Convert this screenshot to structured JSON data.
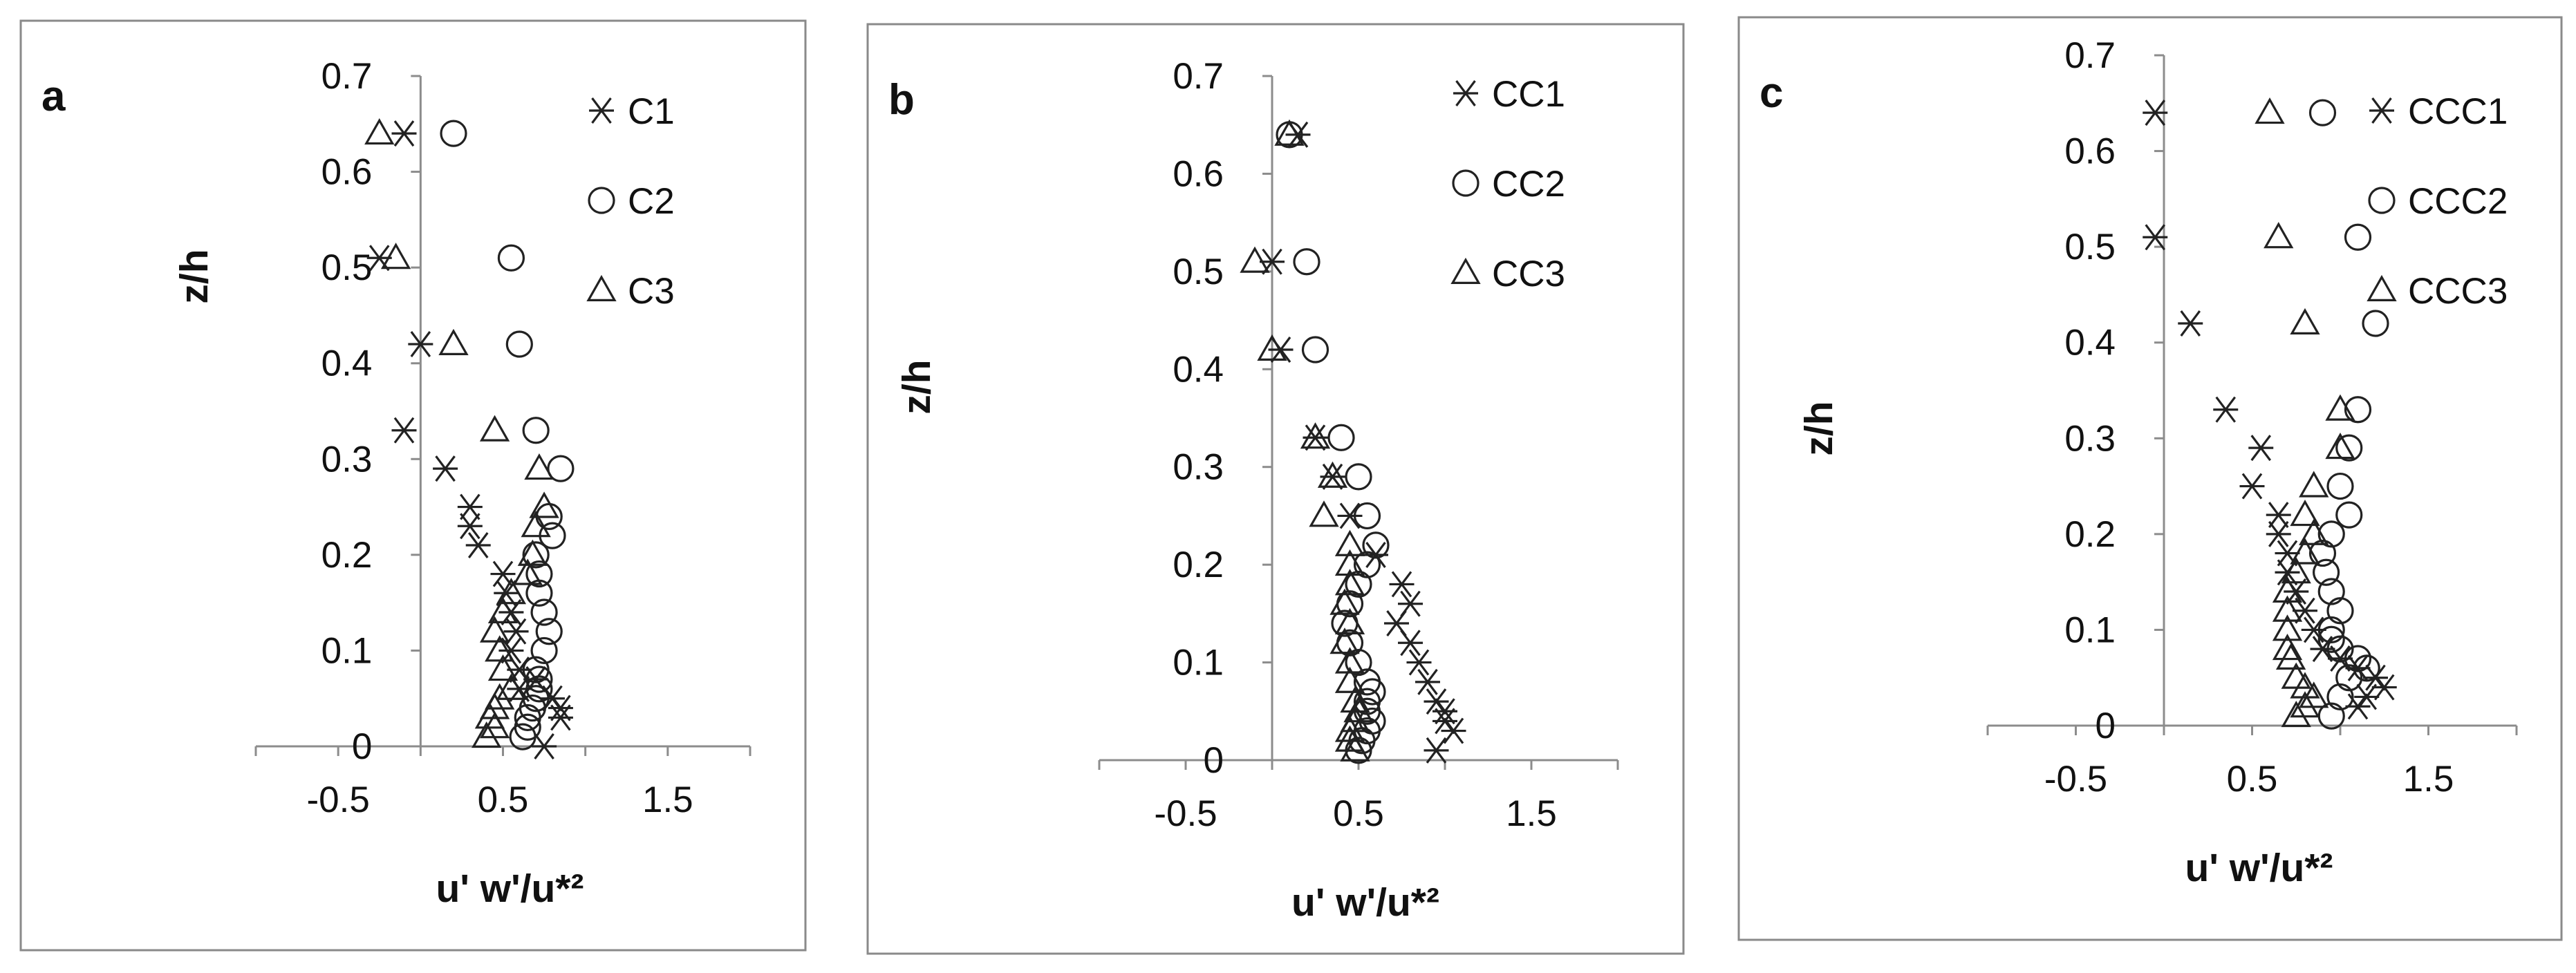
{
  "chart_data": [
    {
      "type": "scatter",
      "panel_label": "a",
      "xlabel": "u' w'/u*²",
      "ylabel": "z/h",
      "xlim": [
        -1.0,
        2.0
      ],
      "ylim": [
        0,
        0.7
      ],
      "xticks": [
        "-0.5",
        "0.5",
        "1.5"
      ],
      "yticks": [
        "0",
        "0.1",
        "0.2",
        "0.3",
        "0.4",
        "0.5",
        "0.6",
        "0.7"
      ],
      "legend_position": "top-right",
      "series": [
        {
          "name": "C1",
          "marker": "asterisk",
          "points": [
            [
              -0.1,
              0.64
            ],
            [
              -0.25,
              0.51
            ],
            [
              0.0,
              0.42
            ],
            [
              -0.1,
              0.33
            ],
            [
              0.15,
              0.29
            ],
            [
              0.3,
              0.25
            ],
            [
              0.3,
              0.23
            ],
            [
              0.35,
              0.21
            ],
            [
              0.5,
              0.18
            ],
            [
              0.52,
              0.16
            ],
            [
              0.55,
              0.14
            ],
            [
              0.58,
              0.12
            ],
            [
              0.55,
              0.1
            ],
            [
              0.6,
              0.08
            ],
            [
              0.7,
              0.07
            ],
            [
              0.8,
              0.05
            ],
            [
              0.85,
              0.04
            ],
            [
              0.85,
              0.03
            ],
            [
              0.75,
              0.0
            ],
            [
              0.6,
              0.06
            ]
          ]
        },
        {
          "name": "C2",
          "marker": "circle",
          "points": [
            [
              0.2,
              0.64
            ],
            [
              0.55,
              0.51
            ],
            [
              0.6,
              0.42
            ],
            [
              0.7,
              0.33
            ],
            [
              0.85,
              0.29
            ],
            [
              0.78,
              0.24
            ],
            [
              0.8,
              0.22
            ],
            [
              0.7,
              0.2
            ],
            [
              0.72,
              0.18
            ],
            [
              0.72,
              0.16
            ],
            [
              0.75,
              0.14
            ],
            [
              0.78,
              0.12
            ],
            [
              0.75,
              0.1
            ],
            [
              0.7,
              0.08
            ],
            [
              0.72,
              0.07
            ],
            [
              0.72,
              0.06
            ],
            [
              0.7,
              0.05
            ],
            [
              0.68,
              0.04
            ],
            [
              0.65,
              0.03
            ],
            [
              0.65,
              0.02
            ],
            [
              0.62,
              0.01
            ]
          ]
        },
        {
          "name": "C3",
          "marker": "triangle",
          "points": [
            [
              -0.25,
              0.64
            ],
            [
              -0.15,
              0.51
            ],
            [
              0.2,
              0.42
            ],
            [
              0.45,
              0.33
            ],
            [
              0.72,
              0.29
            ],
            [
              0.75,
              0.25
            ],
            [
              0.7,
              0.23
            ],
            [
              0.68,
              0.2
            ],
            [
              0.65,
              0.18
            ],
            [
              0.55,
              0.16
            ],
            [
              0.5,
              0.14
            ],
            [
              0.45,
              0.12
            ],
            [
              0.48,
              0.1
            ],
            [
              0.5,
              0.08
            ],
            [
              0.55,
              0.06
            ],
            [
              0.48,
              0.05
            ],
            [
              0.45,
              0.04
            ],
            [
              0.42,
              0.03
            ],
            [
              0.45,
              0.02
            ],
            [
              0.4,
              0.01
            ]
          ]
        }
      ]
    },
    {
      "type": "scatter",
      "panel_label": "b",
      "xlabel": "u' w'/u*²",
      "ylabel": "z/h",
      "xlim": [
        -1.0,
        2.0
      ],
      "ylim": [
        0,
        0.7
      ],
      "xticks": [
        "-0.5",
        "0.5",
        "1.5"
      ],
      "yticks": [
        "0",
        "0.1",
        "0.2",
        "0.3",
        "0.4",
        "0.5",
        "0.6",
        "0.7"
      ],
      "legend_position": "top-right",
      "series": [
        {
          "name": "CC1",
          "marker": "asterisk",
          "points": [
            [
              0.15,
              0.64
            ],
            [
              0.0,
              0.51
            ],
            [
              0.05,
              0.42
            ],
            [
              0.25,
              0.33
            ],
            [
              0.35,
              0.29
            ],
            [
              0.45,
              0.25
            ],
            [
              0.6,
              0.21
            ],
            [
              0.75,
              0.18
            ],
            [
              0.8,
              0.16
            ],
            [
              0.72,
              0.14
            ],
            [
              0.8,
              0.12
            ],
            [
              0.85,
              0.1
            ],
            [
              0.9,
              0.08
            ],
            [
              0.95,
              0.06
            ],
            [
              1.0,
              0.04
            ],
            [
              1.05,
              0.03
            ],
            [
              0.95,
              0.01
            ],
            [
              1.0,
              0.05
            ]
          ]
        },
        {
          "name": "CC2",
          "marker": "circle",
          "points": [
            [
              0.1,
              0.64
            ],
            [
              0.2,
              0.51
            ],
            [
              0.25,
              0.42
            ],
            [
              0.4,
              0.33
            ],
            [
              0.5,
              0.29
            ],
            [
              0.55,
              0.25
            ],
            [
              0.6,
              0.22
            ],
            [
              0.55,
              0.2
            ],
            [
              0.5,
              0.18
            ],
            [
              0.45,
              0.16
            ],
            [
              0.42,
              0.14
            ],
            [
              0.45,
              0.12
            ],
            [
              0.5,
              0.1
            ],
            [
              0.55,
              0.08
            ],
            [
              0.58,
              0.07
            ],
            [
              0.55,
              0.06
            ],
            [
              0.55,
              0.05
            ],
            [
              0.58,
              0.04
            ],
            [
              0.55,
              0.03
            ],
            [
              0.52,
              0.02
            ],
            [
              0.5,
              0.01
            ]
          ]
        },
        {
          "name": "CC3",
          "marker": "triangle",
          "points": [
            [
              0.1,
              0.64
            ],
            [
              -0.1,
              0.51
            ],
            [
              0.0,
              0.42
            ],
            [
              0.25,
              0.33
            ],
            [
              0.35,
              0.29
            ],
            [
              0.3,
              0.25
            ],
            [
              0.45,
              0.22
            ],
            [
              0.45,
              0.2
            ],
            [
              0.45,
              0.18
            ],
            [
              0.42,
              0.16
            ],
            [
              0.45,
              0.14
            ],
            [
              0.42,
              0.12
            ],
            [
              0.45,
              0.1
            ],
            [
              0.45,
              0.08
            ],
            [
              0.48,
              0.06
            ],
            [
              0.5,
              0.05
            ],
            [
              0.48,
              0.04
            ],
            [
              0.45,
              0.03
            ],
            [
              0.45,
              0.02
            ],
            [
              0.48,
              0.01
            ]
          ]
        }
      ]
    },
    {
      "type": "scatter",
      "panel_label": "c",
      "xlabel": "u' w'/u*²",
      "ylabel": "z/h",
      "xlim": [
        -1.0,
        2.0
      ],
      "ylim": [
        0,
        0.7
      ],
      "xticks": [
        "-0.5",
        "0.5",
        "1.5"
      ],
      "yticks": [
        "0",
        "0.1",
        "0.2",
        "0.3",
        "0.4",
        "0.5",
        "0.6",
        "0.7"
      ],
      "legend_position": "top-right",
      "series": [
        {
          "name": "CCC1",
          "marker": "asterisk",
          "points": [
            [
              -0.05,
              0.64
            ],
            [
              -0.05,
              0.51
            ],
            [
              0.15,
              0.42
            ],
            [
              0.35,
              0.33
            ],
            [
              0.55,
              0.29
            ],
            [
              0.5,
              0.25
            ],
            [
              0.65,
              0.22
            ],
            [
              0.65,
              0.2
            ],
            [
              0.7,
              0.18
            ],
            [
              0.7,
              0.16
            ],
            [
              0.75,
              0.14
            ],
            [
              0.8,
              0.12
            ],
            [
              0.85,
              0.1
            ],
            [
              0.9,
              0.08
            ],
            [
              1.0,
              0.07
            ],
            [
              1.1,
              0.06
            ],
            [
              1.2,
              0.05
            ],
            [
              1.25,
              0.04
            ],
            [
              1.15,
              0.03
            ],
            [
              1.1,
              0.02
            ]
          ]
        },
        {
          "name": "CCC2",
          "marker": "circle",
          "points": [
            [
              0.9,
              0.64
            ],
            [
              1.1,
              0.51
            ],
            [
              1.2,
              0.42
            ],
            [
              1.1,
              0.33
            ],
            [
              1.05,
              0.29
            ],
            [
              1.0,
              0.25
            ],
            [
              1.05,
              0.22
            ],
            [
              0.95,
              0.2
            ],
            [
              0.9,
              0.18
            ],
            [
              0.92,
              0.16
            ],
            [
              0.95,
              0.14
            ],
            [
              1.0,
              0.12
            ],
            [
              0.95,
              0.1
            ],
            [
              0.95,
              0.09
            ],
            [
              1.0,
              0.08
            ],
            [
              1.1,
              0.07
            ],
            [
              1.15,
              0.06
            ],
            [
              1.05,
              0.05
            ],
            [
              1.0,
              0.03
            ],
            [
              0.95,
              0.01
            ]
          ]
        },
        {
          "name": "CCC3",
          "marker": "triangle",
          "points": [
            [
              0.6,
              0.64
            ],
            [
              0.65,
              0.51
            ],
            [
              0.8,
              0.42
            ],
            [
              1.0,
              0.33
            ],
            [
              1.0,
              0.29
            ],
            [
              0.85,
              0.25
            ],
            [
              0.8,
              0.22
            ],
            [
              0.85,
              0.2
            ],
            [
              0.8,
              0.18
            ],
            [
              0.75,
              0.16
            ],
            [
              0.7,
              0.14
            ],
            [
              0.7,
              0.12
            ],
            [
              0.7,
              0.1
            ],
            [
              0.7,
              0.08
            ],
            [
              0.72,
              0.07
            ],
            [
              0.75,
              0.05
            ],
            [
              0.8,
              0.04
            ],
            [
              0.85,
              0.03
            ],
            [
              0.8,
              0.02
            ],
            [
              0.75,
              0.01
            ]
          ]
        }
      ]
    }
  ]
}
